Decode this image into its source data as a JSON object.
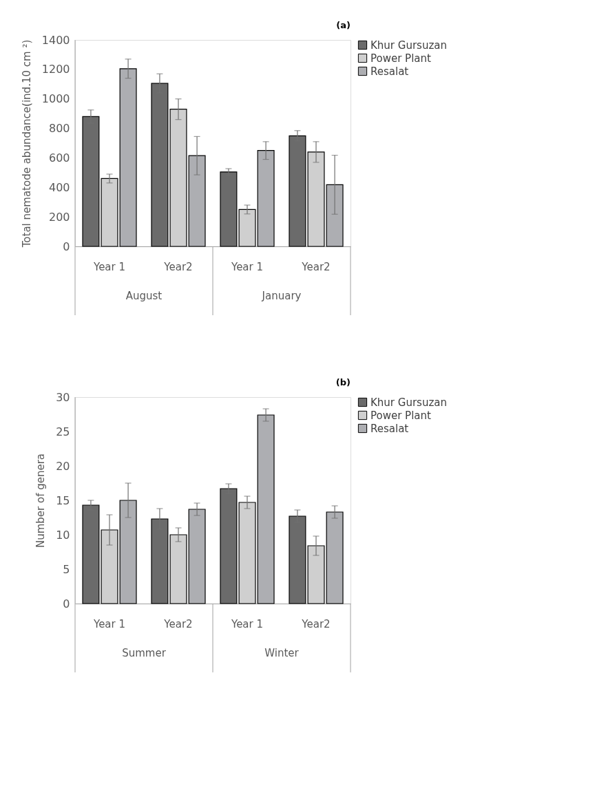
{
  "chart_data": [
    {
      "type": "bar",
      "title": "(a)",
      "ylabel": "Total nematode abundance(ind.10 cm ²)",
      "categories": [
        "Year 1",
        "Year2",
        "Year 1",
        "Year2"
      ],
      "annotations": [
        "August",
        "January"
      ],
      "ylim": [
        0,
        1400
      ],
      "yticks": [
        0,
        200,
        400,
        600,
        800,
        1000,
        1200,
        1400
      ],
      "grid": false,
      "legend": "right",
      "series": [
        {
          "name": "Khur Gursuzan",
          "color": "#6b6b6b",
          "values": [
            880,
            1105,
            505,
            750
          ],
          "errors": [
            45,
            65,
            22,
            35
          ]
        },
        {
          "name": "Power Plant",
          "color": "#cfcfcf",
          "values": [
            460,
            930,
            250,
            640
          ],
          "errors": [
            30,
            70,
            30,
            70
          ]
        },
        {
          "name": "Resalat",
          "color": "#adaeb2",
          "values": [
            1205,
            615,
            650,
            418
          ],
          "errors": [
            65,
            130,
            60,
            200
          ]
        }
      ]
    },
    {
      "type": "bar",
      "title": "(b)",
      "ylabel": "Number of genera",
      "categories": [
        "Year 1",
        "Year2",
        "Year 1",
        "Year2"
      ],
      "annotations": [
        "Summer",
        "Winter"
      ],
      "ylim": [
        0,
        30
      ],
      "yticks": [
        0,
        5,
        10,
        15,
        20,
        25,
        30
      ],
      "grid": false,
      "legend": "right",
      "series": [
        {
          "name": "Khur Gursuzan",
          "color": "#6b6b6b",
          "values": [
            14.3,
            12.3,
            16.7,
            12.7
          ],
          "errors": [
            0.7,
            1.5,
            0.7,
            0.9
          ]
        },
        {
          "name": "Power Plant",
          "color": "#cfcfcf",
          "values": [
            10.7,
            10.0,
            14.7,
            8.4
          ],
          "errors": [
            2.2,
            1.0,
            0.9,
            1.4
          ]
        },
        {
          "name": "Resalat",
          "color": "#adaeb2",
          "values": [
            15.0,
            13.7,
            27.4,
            13.3
          ],
          "errors": [
            2.5,
            0.9,
            0.9,
            0.9
          ]
        }
      ]
    }
  ]
}
